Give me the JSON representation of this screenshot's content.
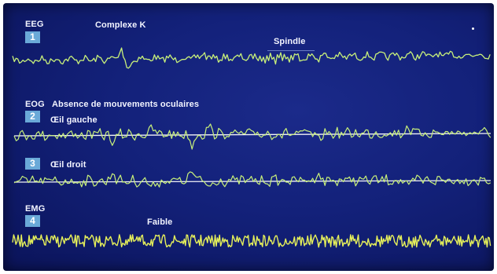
{
  "channels": {
    "eeg": {
      "label": "EEG",
      "number": "1",
      "annotation_k": "Complexe K",
      "annotation_spindle": "Spindle"
    },
    "eog": {
      "label": "EOG",
      "description": "Absence de mouvements oculaires"
    },
    "eog_left": {
      "number": "2",
      "label": "Œil gauche"
    },
    "eog_right": {
      "number": "3",
      "label": "Œil droit"
    },
    "emg": {
      "label": "EMG",
      "number": "4",
      "annotation": "Faible"
    }
  },
  "colors": {
    "background": "#13217a",
    "trace": "#c8f07a",
    "emg_trace": "#e6f05a",
    "baseline": "#ffffff",
    "number_box": "#6aa9d8"
  }
}
